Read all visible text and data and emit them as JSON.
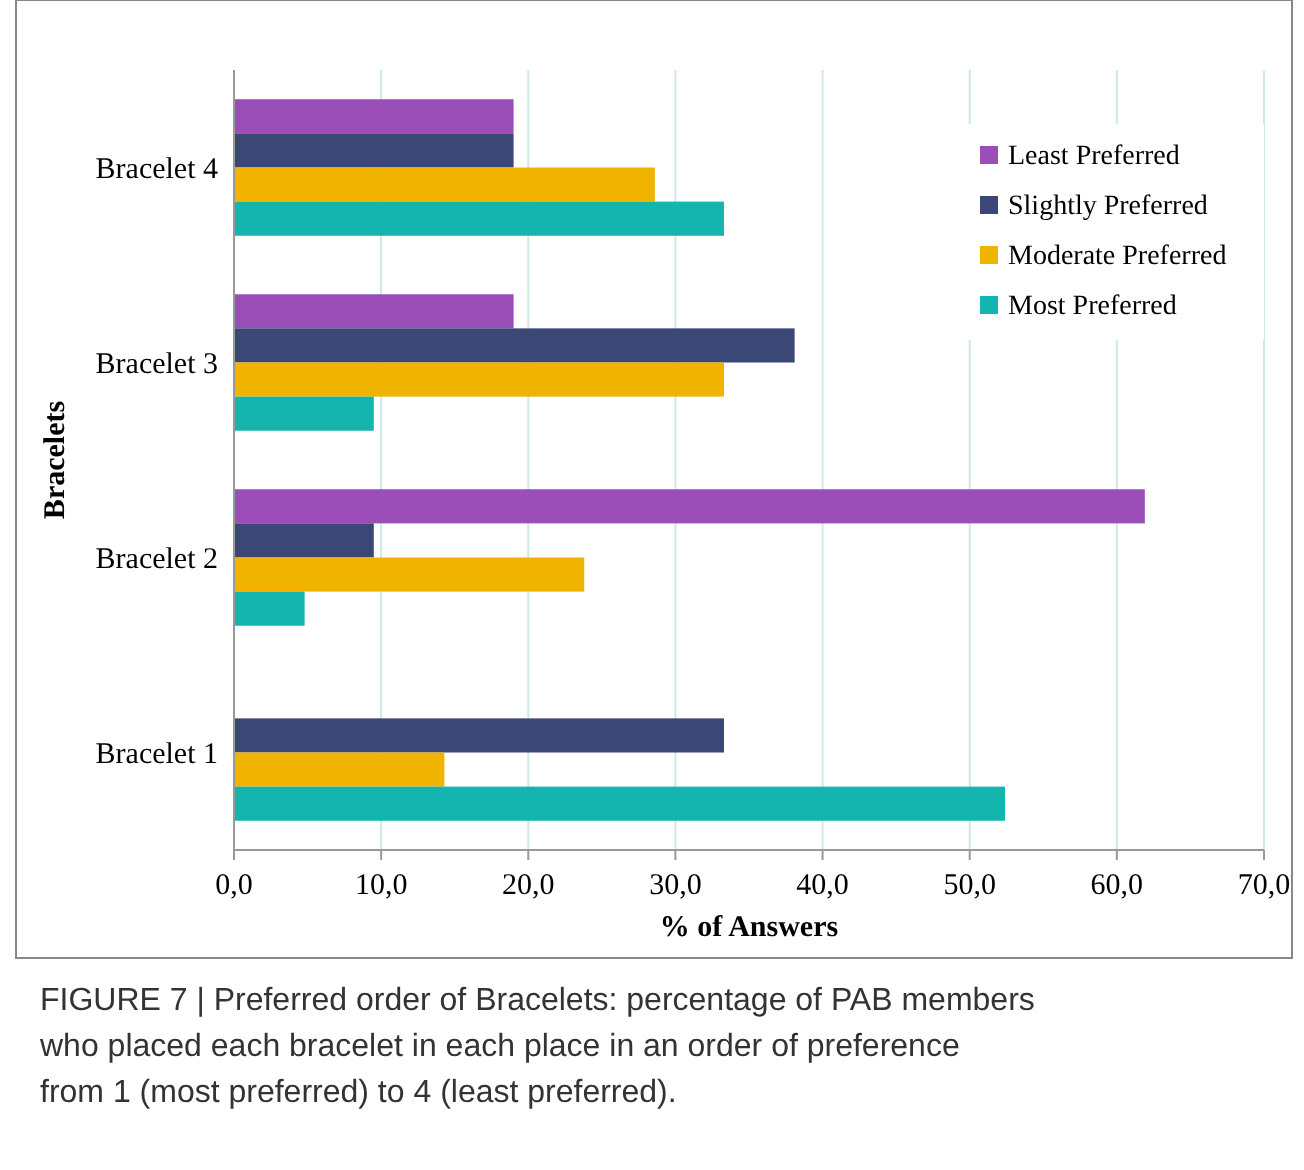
{
  "chart_data": {
    "type": "bar",
    "orientation": "horizontal",
    "xlabel": "% of Answers",
    "ylabel": "Bracelets",
    "categories": [
      "Bracelet 4",
      "Bracelet 3",
      "Bracelet 2",
      "Bracelet 1"
    ],
    "series": [
      {
        "name": "Least Preferred",
        "color": "#9b4db8",
        "values": [
          19.0,
          19.0,
          61.9,
          0
        ]
      },
      {
        "name": "Slightly Preferred",
        "color": "#3b4775",
        "values": [
          19.0,
          38.1,
          9.5,
          33.3
        ]
      },
      {
        "name": "Moderate Preferred",
        "color": "#f0b400",
        "values": [
          28.6,
          33.3,
          23.8,
          14.3
        ]
      },
      {
        "name": "Most Preferred",
        "color": "#14b5ae",
        "values": [
          33.3,
          9.5,
          4.8,
          52.4
        ]
      }
    ],
    "xlim": [
      0,
      70
    ],
    "xticks": [
      {
        "value": 0,
        "label": "0,0"
      },
      {
        "value": 10,
        "label": "10,0"
      },
      {
        "value": 20,
        "label": "20,0"
      },
      {
        "value": 30,
        "label": "30,0"
      },
      {
        "value": 40,
        "label": "40,0"
      },
      {
        "value": 50,
        "label": "50,0"
      },
      {
        "value": 60,
        "label": "60,0"
      },
      {
        "value": 70,
        "label": "70,0"
      }
    ],
    "grid": "x",
    "legend": "top right",
    "annotations": [
      "FIGURE 7 | Preferred order of Bracelets: percentage of PAB members who placed each bracelet in each place in an order of preference from 1 (most preferred) to 4 (least preferred)."
    ]
  }
}
